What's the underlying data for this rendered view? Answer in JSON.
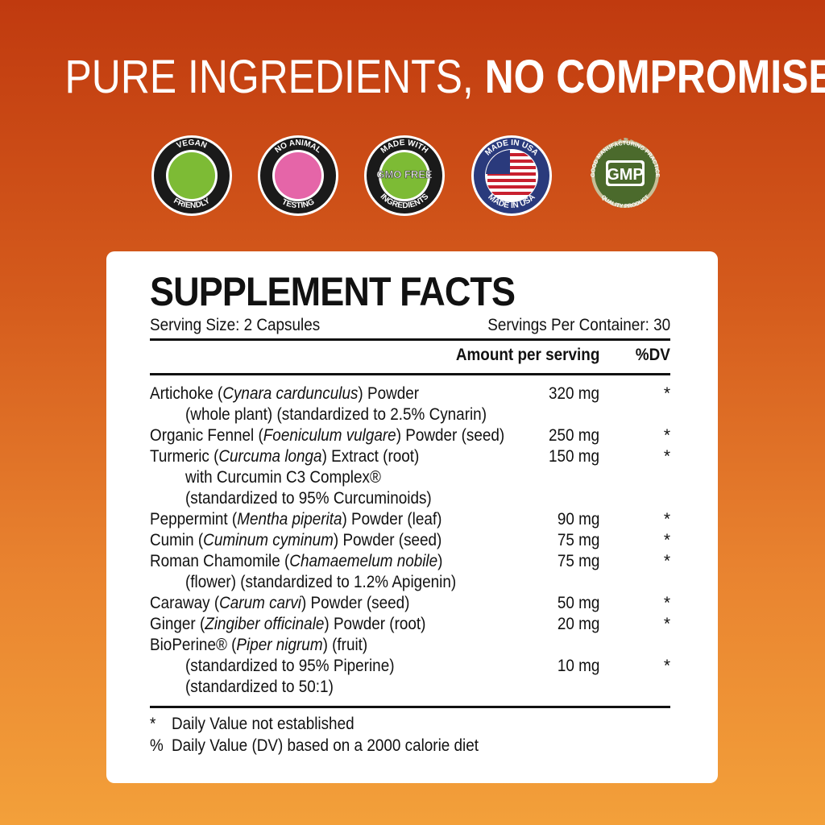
{
  "headline": {
    "light": "PURE INGREDIENTS, ",
    "bold": "NO COMPROMISES"
  },
  "badges": [
    {
      "icon": "vegan-friendly-badge-icon",
      "top": "VEGAN",
      "center": "",
      "bottom": "FRIENDLY",
      "fill": "#7dbb35"
    },
    {
      "icon": "no-animal-testing-badge-icon",
      "top": "NO ANIMAL",
      "center": "",
      "bottom": "TESTING",
      "fill": "#e565a8"
    },
    {
      "icon": "gmo-free-badge-icon",
      "top": "MADE WITH",
      "center": "GMO FREE",
      "bottom": "INGREDIENTS",
      "fill": "#7dbb35"
    },
    {
      "icon": "made-in-usa-badge-icon",
      "top": "MADE IN USA",
      "center": "",
      "bottom": "MADE IN USA",
      "fill": "#2a3a7c"
    },
    {
      "icon": "gmp-badge-icon",
      "top": "GOOD MANUFACTURING PRACTICE",
      "center": "GMP",
      "bottom": "QUALITY PRODUCT",
      "fill": "#4b6a2c"
    }
  ],
  "facts": {
    "title": "SUPPLEMENT FACTS",
    "serving_size": "Serving Size: 2 Capsules",
    "servings_per_container": "Servings Per Container: 30",
    "amount_header": "Amount per serving",
    "dv_header": "%DV",
    "rows": [
      {
        "pre": "Artichoke (",
        "italic": "Cynara cardunculus",
        "post": ") Powder",
        "amount": "320 mg",
        "dv": "*",
        "indent": false
      },
      {
        "pre": "(whole plant) (standardized to 2.5% Cynarin)",
        "italic": "",
        "post": "",
        "amount": "",
        "dv": "",
        "indent": true
      },
      {
        "pre": "Organic Fennel (",
        "italic": "Foeniculum vulgare",
        "post": ") Powder (seed)",
        "amount": "250 mg",
        "dv": "*",
        "indent": false
      },
      {
        "pre": "Turmeric (",
        "italic": "Curcuma longa",
        "post": ") Extract (root)",
        "amount": "150 mg",
        "dv": "*",
        "indent": false
      },
      {
        "pre": "with Curcumin C3 Complex®",
        "italic": "",
        "post": "",
        "amount": "",
        "dv": "",
        "indent": true
      },
      {
        "pre": "(standardized to 95% Curcuminoids)",
        "italic": "",
        "post": "",
        "amount": "",
        "dv": "",
        "indent": true
      },
      {
        "pre": "Peppermint (",
        "italic": "Mentha piperita",
        "post": ") Powder (leaf)",
        "amount": "90 mg",
        "dv": "*",
        "indent": false
      },
      {
        "pre": "Cumin (",
        "italic": "Cuminum cyminum",
        "post": ") Powder (seed)",
        "amount": "75 mg",
        "dv": "*",
        "indent": false
      },
      {
        "pre": "Roman Chamomile (",
        "italic": "Chamaemelum nobile",
        "post": ")",
        "amount": "75 mg",
        "dv": "*",
        "indent": false
      },
      {
        "pre": "(flower) (standardized to 1.2% Apigenin)",
        "italic": "",
        "post": "",
        "amount": "",
        "dv": "",
        "indent": true
      },
      {
        "pre": "Caraway (",
        "italic": "Carum carvi",
        "post": ") Powder (seed)",
        "amount": "50 mg",
        "dv": "*",
        "indent": false
      },
      {
        "pre": "Ginger (",
        "italic": "Zingiber officinale",
        "post": ") Powder (root)",
        "amount": "20 mg",
        "dv": "*",
        "indent": false
      },
      {
        "pre": "BioPerine® (",
        "italic": "Piper nigrum",
        "post": ") (fruit)",
        "amount": "",
        "dv": "",
        "indent": false
      },
      {
        "pre": "(standardized to 95% Piperine)",
        "italic": "",
        "post": "",
        "amount": "10 mg",
        "dv": "*",
        "indent": true
      },
      {
        "pre": "(standardized to 50:1)",
        "italic": "",
        "post": "",
        "amount": "",
        "dv": "",
        "indent": true
      }
    ],
    "footnotes": [
      {
        "symbol": "*",
        "text": "Daily Value not established"
      },
      {
        "symbol": "%",
        "text": "Daily Value (DV) based on a 2000 calorie diet"
      }
    ]
  }
}
